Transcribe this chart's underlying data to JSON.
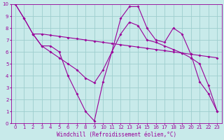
{
  "xlabel": "Windchill (Refroidissement éolien,°C)",
  "xlim": [
    -0.5,
    23.5
  ],
  "ylim": [
    0,
    10
  ],
  "xticks": [
    0,
    1,
    2,
    3,
    4,
    5,
    6,
    7,
    8,
    9,
    10,
    11,
    12,
    13,
    14,
    15,
    16,
    17,
    18,
    19,
    20,
    21,
    22,
    23
  ],
  "yticks": [
    0,
    1,
    2,
    3,
    4,
    5,
    6,
    7,
    8,
    9,
    10
  ],
  "bg_color": "#c8eaea",
  "line_color": "#990099",
  "grid_color": "#9ecece",
  "lines": [
    {
      "x": [
        0,
        1,
        2,
        3,
        4,
        5,
        6,
        7,
        8,
        9,
        10,
        11,
        12,
        13,
        14,
        15,
        16,
        17,
        18,
        19,
        20,
        21,
        22,
        23
      ],
      "y": [
        10.0,
        8.8,
        7.5,
        6.5,
        6.0,
        5.5,
        5.0,
        4.5,
        3.8,
        3.4,
        4.5,
        6.0,
        7.5,
        8.5,
        8.2,
        7.0,
        6.8,
        6.5,
        6.2,
        5.9,
        5.5,
        5.0,
        3.2,
        1.0
      ]
    },
    {
      "x": [
        0,
        1,
        2,
        3,
        4,
        5,
        6,
        7,
        8,
        9,
        10,
        11,
        12,
        13,
        14,
        15,
        16,
        17,
        18,
        19,
        20,
        21,
        22,
        23
      ],
      "y": [
        10.0,
        8.8,
        7.5,
        7.5,
        7.4,
        7.3,
        7.2,
        7.1,
        7.0,
        6.9,
        6.8,
        6.7,
        6.6,
        6.5,
        6.4,
        6.3,
        6.2,
        6.1,
        6.0,
        5.9,
        5.8,
        5.7,
        5.6,
        5.5
      ]
    },
    {
      "x": [
        2,
        3,
        4,
        5,
        6,
        7,
        8,
        9,
        10,
        11,
        12,
        13,
        14,
        15,
        16,
        17,
        18,
        19,
        20,
        21,
        22,
        23
      ],
      "y": [
        7.5,
        6.5,
        6.5,
        6.0,
        4.0,
        2.5,
        1.0,
        0.2,
        3.5,
        6.0,
        8.8,
        9.8,
        9.8,
        8.0,
        7.0,
        6.8,
        8.0,
        7.5,
        5.8,
        3.5,
        2.5,
        1.0
      ]
    }
  ],
  "tick_fontsize": 5.0,
  "xlabel_fontsize": 5.5
}
